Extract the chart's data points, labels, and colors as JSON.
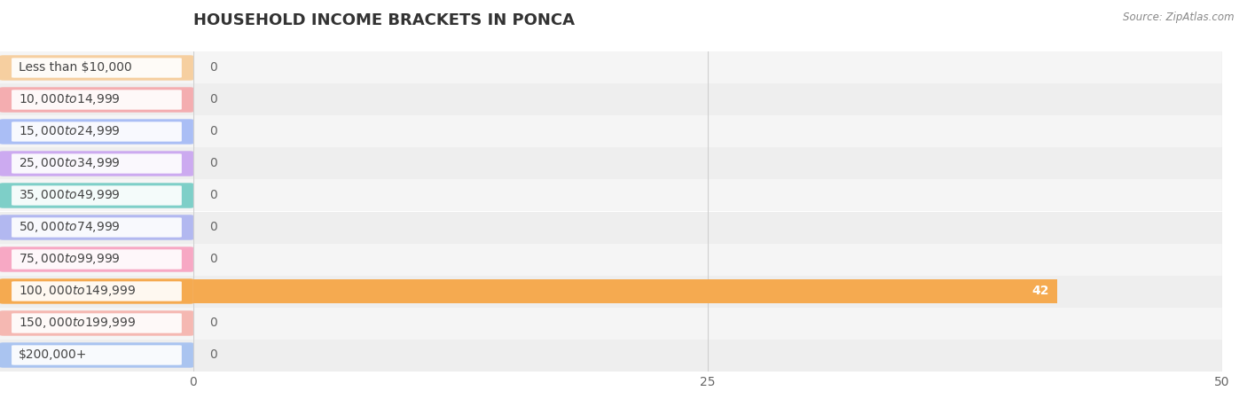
{
  "title": "HOUSEHOLD INCOME BRACKETS IN PONCA",
  "source": "Source: ZipAtlas.com",
  "categories": [
    "Less than $10,000",
    "$10,000 to $14,999",
    "$15,000 to $24,999",
    "$25,000 to $34,999",
    "$35,000 to $49,999",
    "$50,000 to $74,999",
    "$75,000 to $99,999",
    "$100,000 to $149,999",
    "$150,000 to $199,999",
    "$200,000+"
  ],
  "values": [
    0,
    0,
    0,
    0,
    0,
    0,
    0,
    42,
    0,
    0
  ],
  "bar_colors": [
    "#f6cfa0",
    "#f4adb0",
    "#aabef5",
    "#ccaaf0",
    "#7ecfc8",
    "#b2b8f0",
    "#f7a8c4",
    "#f5aa50",
    "#f5b8b2",
    "#aac4f0"
  ],
  "row_bg_even": "#f5f5f5",
  "row_bg_odd": "#eeeeee",
  "xlim": [
    0,
    50
  ],
  "xticks": [
    0,
    25,
    50
  ],
  "value_label_color_default": "#666666",
  "value_label_color_highlight": "#ffffff",
  "title_fontsize": 13,
  "tick_fontsize": 10,
  "label_fontsize": 10,
  "background_color": "#ffffff",
  "grid_color": "#d0d0d0"
}
